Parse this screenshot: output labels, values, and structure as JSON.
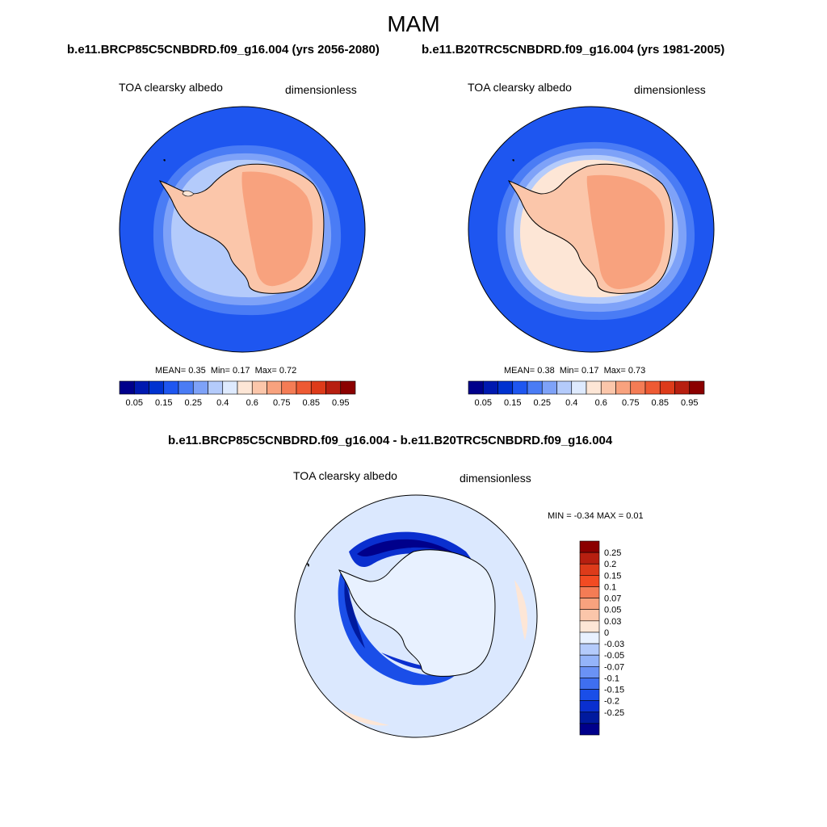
{
  "title": "MAM",
  "panels": [
    {
      "case_title": "b.e11.BRCP85C5CNBDRD.f09_g16.004 (yrs 2056-2080)",
      "variable": "TOA clearsky albedo",
      "units": "dimensionless",
      "stats": {
        "mean_label": "MEAN=",
        "mean": "0.35",
        "min_label": "Min=",
        "min": "0.17",
        "max_label": "Max=",
        "max": "0.72"
      }
    },
    {
      "case_title": "b.e11.B20TRC5CNBDRD.f09_g16.004 (yrs 1981-2005)",
      "variable": "TOA clearsky albedo",
      "units": "dimensionless",
      "stats": {
        "mean_label": "MEAN=",
        "mean": "0.38",
        "min_label": "Min=",
        "min": "0.17",
        "max_label": "Max=",
        "max": "0.73"
      }
    }
  ],
  "diff_panel": {
    "case_title": "b.e11.BRCP85C5CNBDRD.f09_g16.004 - b.e11.B20TRC5CNBDRD.f09_g16.004",
    "variable": "TOA clearsky albedo",
    "units": "dimensionless",
    "stats": {
      "min_label": "MIN =",
      "min": "-0.34",
      "max_label": "MAX =",
      "max": "0.01"
    }
  },
  "colorbar_abs": {
    "colors": [
      "#00008b",
      "#0019b0",
      "#0032d0",
      "#1e56f0",
      "#4a7cf5",
      "#7ea2f8",
      "#b4cbfb",
      "#deeafe",
      "#fde6d6",
      "#fbc6aa",
      "#f8a27e",
      "#f47c55",
      "#ee5a33",
      "#dd3b1a",
      "#b71f10",
      "#8b0000"
    ],
    "labels": [
      "0.05",
      "0.15",
      "0.25",
      "0.4",
      "0.6",
      "0.75",
      "0.85",
      "0.95"
    ]
  },
  "colorbar_diff": {
    "colors": [
      "#8b0000",
      "#b71f10",
      "#dd3b1a",
      "#f24b22",
      "#f47c55",
      "#f8a27e",
      "#fbc6aa",
      "#fde6d6",
      "#e8f1ff",
      "#b4cbfb",
      "#94b4f9",
      "#6a92f5",
      "#3f6ff0",
      "#1a4ee8",
      "#0a2fcf",
      "#001a9e",
      "#00008b"
    ],
    "labels": [
      "0.25",
      "0.2",
      "0.15",
      "0.1",
      "0.07",
      "0.05",
      "0.03",
      "0",
      "-0.03",
      "-0.05",
      "-0.07",
      "-0.1",
      "-0.15",
      "-0.2",
      "-0.25"
    ]
  }
}
